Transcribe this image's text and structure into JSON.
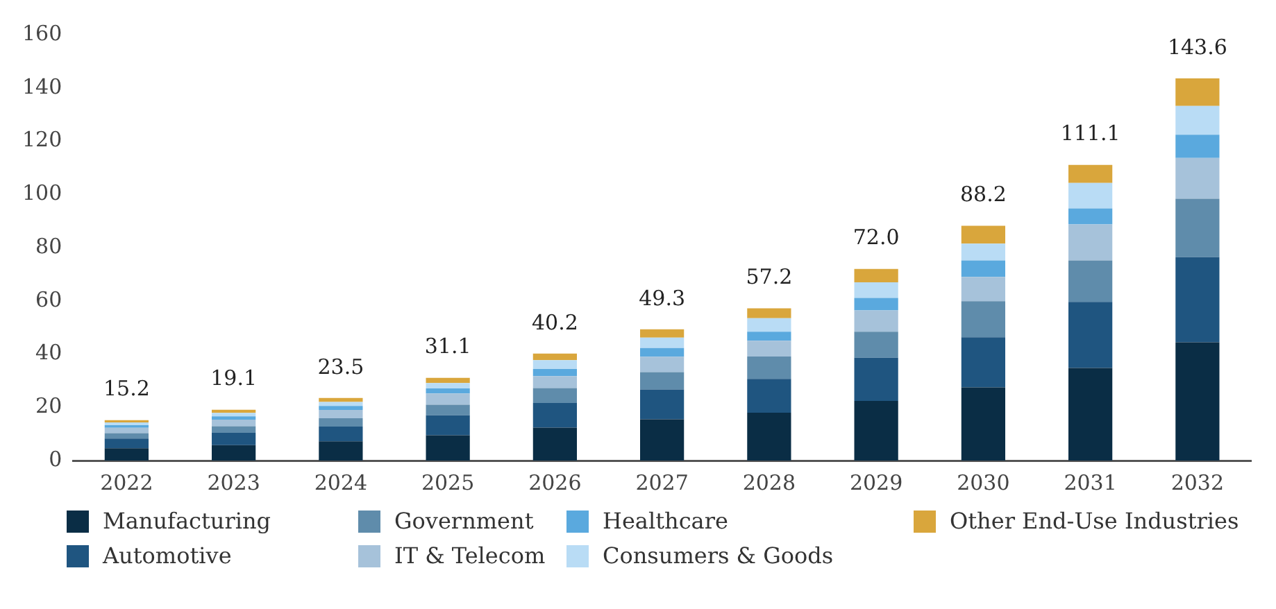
{
  "chart_data": {
    "type": "bar",
    "stacked": true,
    "categories": [
      "2022",
      "2023",
      "2024",
      "2025",
      "2026",
      "2027",
      "2028",
      "2029",
      "2030",
      "2031",
      "2032"
    ],
    "series": [
      {
        "name": "Manufacturing",
        "color": "#0a2d45",
        "values": [
          4.6,
          5.8,
          7.2,
          9.5,
          12.4,
          15.5,
          18.0,
          22.4,
          27.5,
          34.8,
          44.4
        ]
      },
      {
        "name": "Automotive",
        "color": "#1f5580",
        "values": [
          3.7,
          4.6,
          5.6,
          7.5,
          9.2,
          11.2,
          12.7,
          16.2,
          18.8,
          24.8,
          32.0
        ]
      },
      {
        "name": "Government",
        "color": "#5f8cab",
        "values": [
          2.0,
          2.5,
          3.1,
          4.0,
          5.6,
          6.5,
          8.4,
          9.8,
          13.6,
          15.6,
          22.0
        ]
      },
      {
        "name": "IT & Telecom",
        "color": "#a6c2da",
        "values": [
          2.0,
          2.5,
          3.1,
          4.2,
          4.5,
          5.8,
          5.9,
          8.0,
          9.1,
          13.5,
          15.3
        ]
      },
      {
        "name": "Healthcare",
        "color": "#5aa9de",
        "values": [
          1.0,
          1.2,
          1.5,
          1.9,
          2.7,
          3.3,
          3.4,
          4.7,
          6.2,
          6.0,
          8.7
        ]
      },
      {
        "name": "Consumers & Goods",
        "color": "#b9dcf5",
        "values": [
          1.0,
          1.3,
          1.5,
          2.0,
          3.3,
          3.9,
          5.1,
          5.9,
          6.3,
          9.6,
          10.8
        ]
      },
      {
        "name": "Other End-Use Industries",
        "color": "#d9a63c",
        "values": [
          0.9,
          1.2,
          1.5,
          2.0,
          2.5,
          3.1,
          3.7,
          5.0,
          6.7,
          6.8,
          10.4
        ]
      }
    ],
    "totals": [
      "15.2",
      "19.1",
      "23.5",
      "31.1",
      "40.2",
      "49.3",
      "57.2",
      "72.0",
      "88.2",
      "111.1",
      "143.6"
    ],
    "ylim": [
      0,
      160
    ],
    "yticks": [
      0,
      20,
      40,
      60,
      80,
      100,
      120,
      140,
      160
    ],
    "grid": false,
    "legend": "bottom"
  }
}
